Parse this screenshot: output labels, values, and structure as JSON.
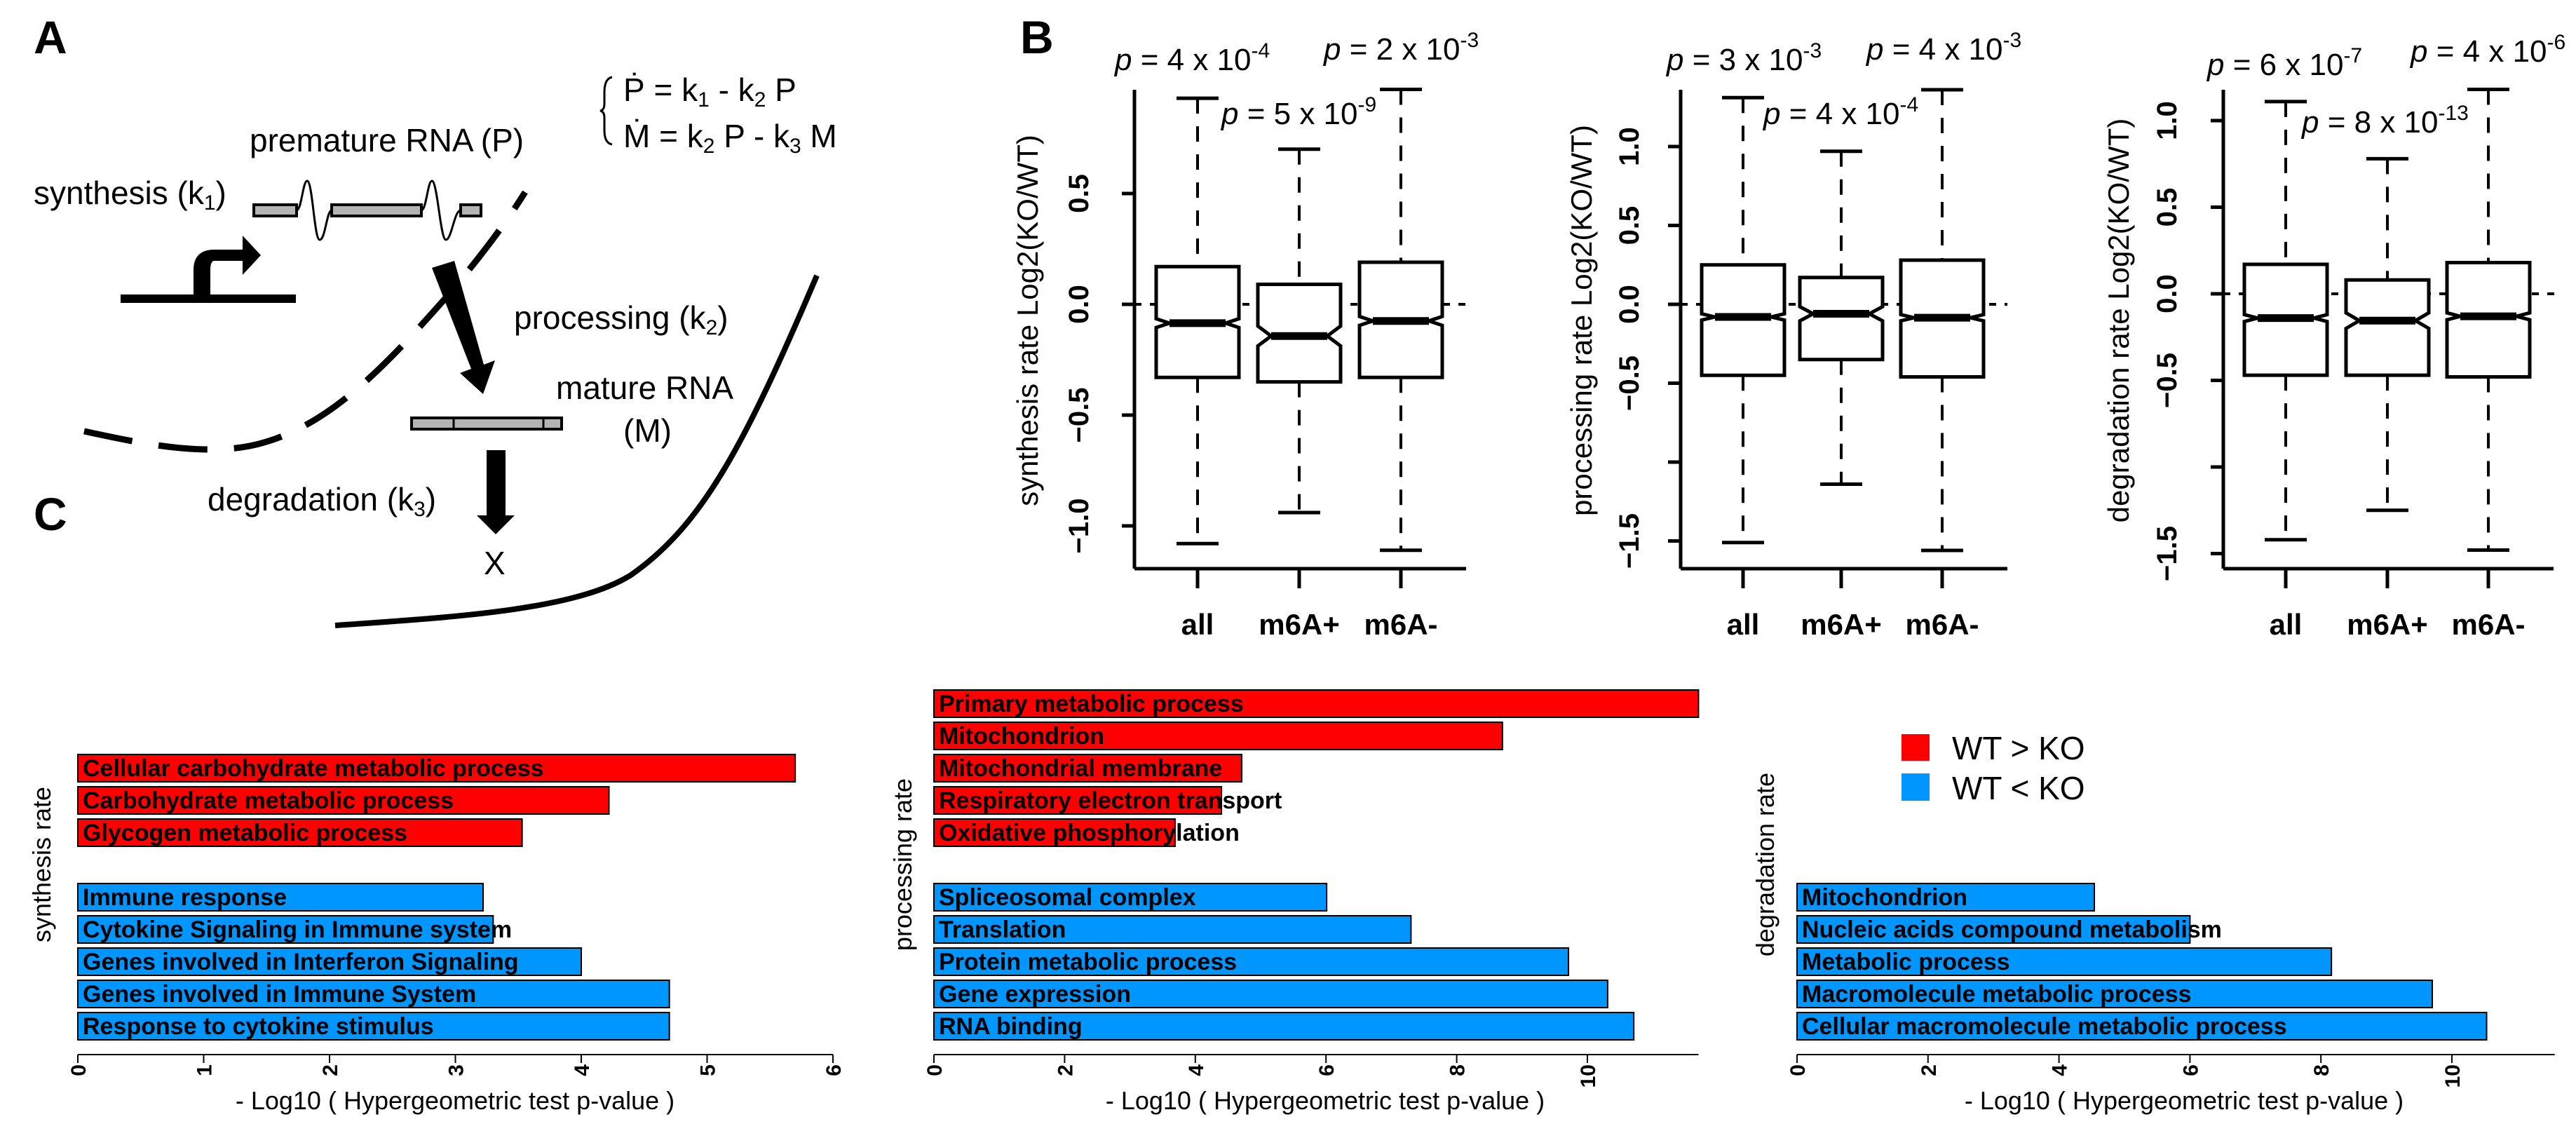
{
  "panel_labels": {
    "a": "A",
    "b": "B",
    "c": "C"
  },
  "diagram": {
    "eq1": [
      {
        "t": "Ṗ = k",
        "s": false
      },
      {
        "t": "1",
        "s": true
      },
      {
        "t": " - k",
        "s": false
      },
      {
        "t": "2",
        "s": true
      },
      {
        "t": " P",
        "s": false
      }
    ],
    "eq2": [
      {
        "t": "Ṁ = k",
        "s": false
      },
      {
        "t": "2",
        "s": true
      },
      {
        "t": " P - k",
        "s": false
      },
      {
        "t": "3",
        "s": true
      },
      {
        "t": " M",
        "s": false
      }
    ],
    "premature": "premature RNA (P)",
    "synthesis": {
      "t": "synthesis (k",
      "sub": "1",
      "end": ")"
    },
    "processing": {
      "t": "processing (k",
      "sub": "2",
      "end": ")"
    },
    "mature1": "mature RNA",
    "mature2": "(M)",
    "degradation": {
      "t": "degradation (k",
      "sub": "3",
      "end": ")"
    },
    "x_mark": "X"
  },
  "chart_data": [
    {
      "type": "boxplot",
      "panel": "B",
      "ylabel": "synthesis rate Log2(KO/WT)",
      "categories": [
        "all",
        "m6A+",
        "m6A-"
      ],
      "y_ticks": [
        -1.0,
        -0.5,
        0.0,
        0.5
      ],
      "y_tick_labels": [
        "−1.0",
        "−0.5",
        "0.0",
        "0.5"
      ],
      "reference_line": 0,
      "boxes": [
        {
          "lower": -1.08,
          "q1": -0.33,
          "median": -0.085,
          "q3": 0.17,
          "upper": 0.93,
          "notch": [
            -0.105,
            -0.065
          ]
        },
        {
          "lower": -0.94,
          "q1": -0.35,
          "median": -0.143,
          "q3": 0.09,
          "upper": 0.7,
          "notch": [
            -0.188,
            -0.098
          ]
        },
        {
          "lower": -1.11,
          "q1": -0.33,
          "median": -0.075,
          "q3": 0.19,
          "upper": 0.97,
          "notch": [
            -0.095,
            -0.055
          ]
        }
      ],
      "p_values": [
        {
          "sym": "p",
          "body": " = 4 x 10",
          "exp": "-4"
        },
        {
          "sym": "p",
          "body": " = 5 x 10",
          "exp": "-9"
        },
        {
          "sym": "p",
          "body": " = 2 x 10",
          "exp": "-3"
        }
      ]
    },
    {
      "type": "boxplot",
      "panel": "B",
      "ylabel": "processing rate Log2(KO/WT)",
      "categories": [
        "all",
        "m6A+",
        "m6A-"
      ],
      "y_ticks": [
        -1.5,
        -1.0,
        -0.5,
        0.0,
        0.5,
        1.0
      ],
      "y_tick_labels": [
        "−1.5",
        "",
        "−0.5",
        "0.0",
        "0.5",
        "1.0"
      ],
      "reference_line": 0,
      "boxes": [
        {
          "lower": -1.51,
          "q1": -0.45,
          "median": -0.08,
          "q3": 0.25,
          "upper": 1.31,
          "notch": [
            -0.1,
            -0.06
          ]
        },
        {
          "lower": -1.14,
          "q1": -0.35,
          "median": -0.06,
          "q3": 0.17,
          "upper": 0.97,
          "notch": [
            -0.105,
            -0.015
          ]
        },
        {
          "lower": -1.56,
          "q1": -0.46,
          "median": -0.085,
          "q3": 0.28,
          "upper": 1.36,
          "notch": [
            -0.105,
            -0.065
          ]
        }
      ],
      "p_values": [
        {
          "sym": "p",
          "body": " = 3 x 10",
          "exp": "-3"
        },
        {
          "sym": "p",
          "body": " = 4 x 10",
          "exp": "-4"
        },
        {
          "sym": "p",
          "body": " = 4 x 10",
          "exp": "-3"
        }
      ]
    },
    {
      "type": "boxplot",
      "panel": "B",
      "ylabel": "degradation rate Log2(KO/WT)",
      "categories": [
        "all",
        "m6A+",
        "m6A-"
      ],
      "y_ticks": [
        -1.5,
        -1.0,
        -0.5,
        0.0,
        0.5,
        1.0
      ],
      "y_tick_labels": [
        "−1.5",
        "",
        "−0.5",
        "0.0",
        "0.5",
        "1.0"
      ],
      "reference_line": 0,
      "boxes": [
        {
          "lower": -1.42,
          "q1": -0.47,
          "median": -0.14,
          "q3": 0.17,
          "upper": 1.11,
          "notch": [
            -0.16,
            -0.12
          ]
        },
        {
          "lower": -1.25,
          "q1": -0.47,
          "median": -0.155,
          "q3": 0.08,
          "upper": 0.78,
          "notch": [
            -0.2,
            -0.11
          ]
        },
        {
          "lower": -1.48,
          "q1": -0.48,
          "median": -0.13,
          "q3": 0.18,
          "upper": 1.18,
          "notch": [
            -0.15,
            -0.11
          ]
        }
      ],
      "p_values": [
        {
          "sym": "p",
          "body": " = 6 x 10",
          "exp": "-7"
        },
        {
          "sym": "p",
          "body": " = 8 x 10",
          "exp": "-13"
        },
        {
          "sym": "p",
          "body": " = 4 x 10",
          "exp": "-6"
        }
      ]
    },
    {
      "type": "bar",
      "orientation": "horizontal",
      "panel": "C",
      "ylabel": "synthesis rate",
      "xlabel": "- Log10 ( Hypergeometric test p-value )",
      "x_ticks": [
        0,
        1,
        2,
        3,
        4,
        5,
        6
      ],
      "xlim": [
        0,
        6
      ],
      "up": [
        {
          "label": "Cellular carbohydrate metabolic process",
          "value": 5.7
        },
        {
          "label": "Carbohydrate metabolic process",
          "value": 4.22
        },
        {
          "label": "Glycogen metabolic process",
          "value": 3.53
        }
      ],
      "down": [
        {
          "label": "Immune response",
          "value": 3.22
        },
        {
          "label": "Cytokine Signaling in Immune system",
          "value": 3.3
        },
        {
          "label": "Genes involved in Interferon Signaling",
          "value": 4.0
        },
        {
          "label": "Genes involved in Immune System",
          "value": 4.7
        },
        {
          "label": "Response to cytokine stimulus",
          "value": 4.7
        }
      ]
    },
    {
      "type": "bar",
      "orientation": "horizontal",
      "panel": "C",
      "ylabel": "processing rate",
      "xlabel": "- Log10 ( Hypergeometric test p-value )",
      "x_ticks": [
        0,
        2,
        4,
        6,
        8,
        10
      ],
      "xlim": [
        0,
        11.7
      ],
      "up": [
        {
          "label": "Primary metabolic process",
          "value": 11.7
        },
        {
          "label": "Mitochondrion",
          "value": 8.7
        },
        {
          "label": "Mitochondrial membrane",
          "value": 4.71
        },
        {
          "label": "Respiratory electron transport",
          "value": 4.4
        },
        {
          "label": "Oxidative phosphorylation",
          "value": 3.69
        }
      ],
      "down": [
        {
          "label": "Spliceosomal complex",
          "value": 6.01
        },
        {
          "label": "Translation",
          "value": 7.3
        },
        {
          "label": "Protein metabolic process",
          "value": 9.71
        },
        {
          "label": "Gene expression",
          "value": 10.31
        },
        {
          "label": "RNA binding",
          "value": 10.71
        }
      ]
    },
    {
      "type": "bar",
      "orientation": "horizontal",
      "panel": "C",
      "ylabel": "degradation rate",
      "xlabel": "- Log10 ( Hypergeometric test p-value )",
      "x_ticks": [
        0,
        2,
        4,
        6,
        8,
        10
      ],
      "xlim": [
        0,
        11.57
      ],
      "up": [],
      "down": [
        {
          "label": "Mitochondrion",
          "value": 4.54
        },
        {
          "label": "Nucleic acids compound metabolism",
          "value": 6.0
        },
        {
          "label": "Metabolic process",
          "value": 8.16
        },
        {
          "label": "Macromolecule metabolic process",
          "value": 9.7
        },
        {
          "label": "Cellular macromolecule metabolic process",
          "value": 10.53
        }
      ]
    }
  ],
  "legend": {
    "position": "top-right of panel C",
    "items": [
      {
        "label": "WT > KO",
        "color": "#ff0000"
      },
      {
        "label": "WT < KO",
        "color": "#0096ff"
      }
    ]
  },
  "colors": {
    "up": "#ff0000",
    "down": "#0096ff",
    "grey_exon": "#b4b4b4"
  }
}
